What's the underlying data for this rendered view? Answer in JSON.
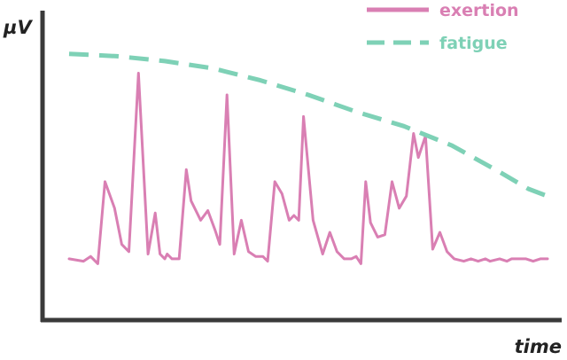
{
  "chart_data": {
    "type": "line",
    "title": "",
    "xlabel": "time",
    "ylabel": "µV",
    "axis_color": "#3a3a3a",
    "ylim": [
      0,
      1
    ],
    "xlim": [
      0,
      1
    ],
    "legend_position": "top-right",
    "series": [
      {
        "name": "exertion",
        "color": "#d97fb3",
        "style": "solid",
        "x": [
          0.0,
          0.03,
          0.045,
          0.06,
          0.075,
          0.095,
          0.11,
          0.125,
          0.145,
          0.165,
          0.18,
          0.19,
          0.2,
          0.205,
          0.215,
          0.23,
          0.245,
          0.255,
          0.275,
          0.29,
          0.305,
          0.315,
          0.33,
          0.345,
          0.36,
          0.375,
          0.39,
          0.405,
          0.415,
          0.43,
          0.445,
          0.46,
          0.47,
          0.48,
          0.49,
          0.51,
          0.53,
          0.545,
          0.56,
          0.575,
          0.59,
          0.6,
          0.61,
          0.62,
          0.63,
          0.645,
          0.66,
          0.675,
          0.69,
          0.705,
          0.72,
          0.73,
          0.745,
          0.76,
          0.775,
          0.79,
          0.805,
          0.825,
          0.84,
          0.855,
          0.87,
          0.88,
          0.9,
          0.915,
          0.925,
          0.935,
          0.955,
          0.97,
          0.985,
          1.0
        ],
        "y": [
          0.14,
          0.13,
          0.15,
          0.12,
          0.46,
          0.35,
          0.2,
          0.17,
          0.91,
          0.16,
          0.33,
          0.16,
          0.14,
          0.16,
          0.14,
          0.14,
          0.51,
          0.38,
          0.3,
          0.34,
          0.26,
          0.2,
          0.82,
          0.16,
          0.3,
          0.17,
          0.15,
          0.15,
          0.13,
          0.46,
          0.41,
          0.3,
          0.32,
          0.3,
          0.73,
          0.3,
          0.16,
          0.25,
          0.17,
          0.14,
          0.14,
          0.15,
          0.12,
          0.46,
          0.29,
          0.23,
          0.24,
          0.46,
          0.35,
          0.4,
          0.66,
          0.56,
          0.65,
          0.18,
          0.25,
          0.17,
          0.14,
          0.13,
          0.14,
          0.13,
          0.14,
          0.13,
          0.14,
          0.13,
          0.14,
          0.14,
          0.14,
          0.13,
          0.14,
          0.14
        ]
      },
      {
        "name": "fatigue",
        "color": "#7ed1b6",
        "style": "dashed",
        "x": [
          0.0,
          0.1,
          0.2,
          0.3,
          0.4,
          0.5,
          0.6,
          0.7,
          0.8,
          0.9,
          0.96,
          1.0
        ],
        "y": [
          0.99,
          0.98,
          0.96,
          0.93,
          0.88,
          0.82,
          0.75,
          0.69,
          0.61,
          0.5,
          0.43,
          0.4
        ]
      }
    ]
  }
}
